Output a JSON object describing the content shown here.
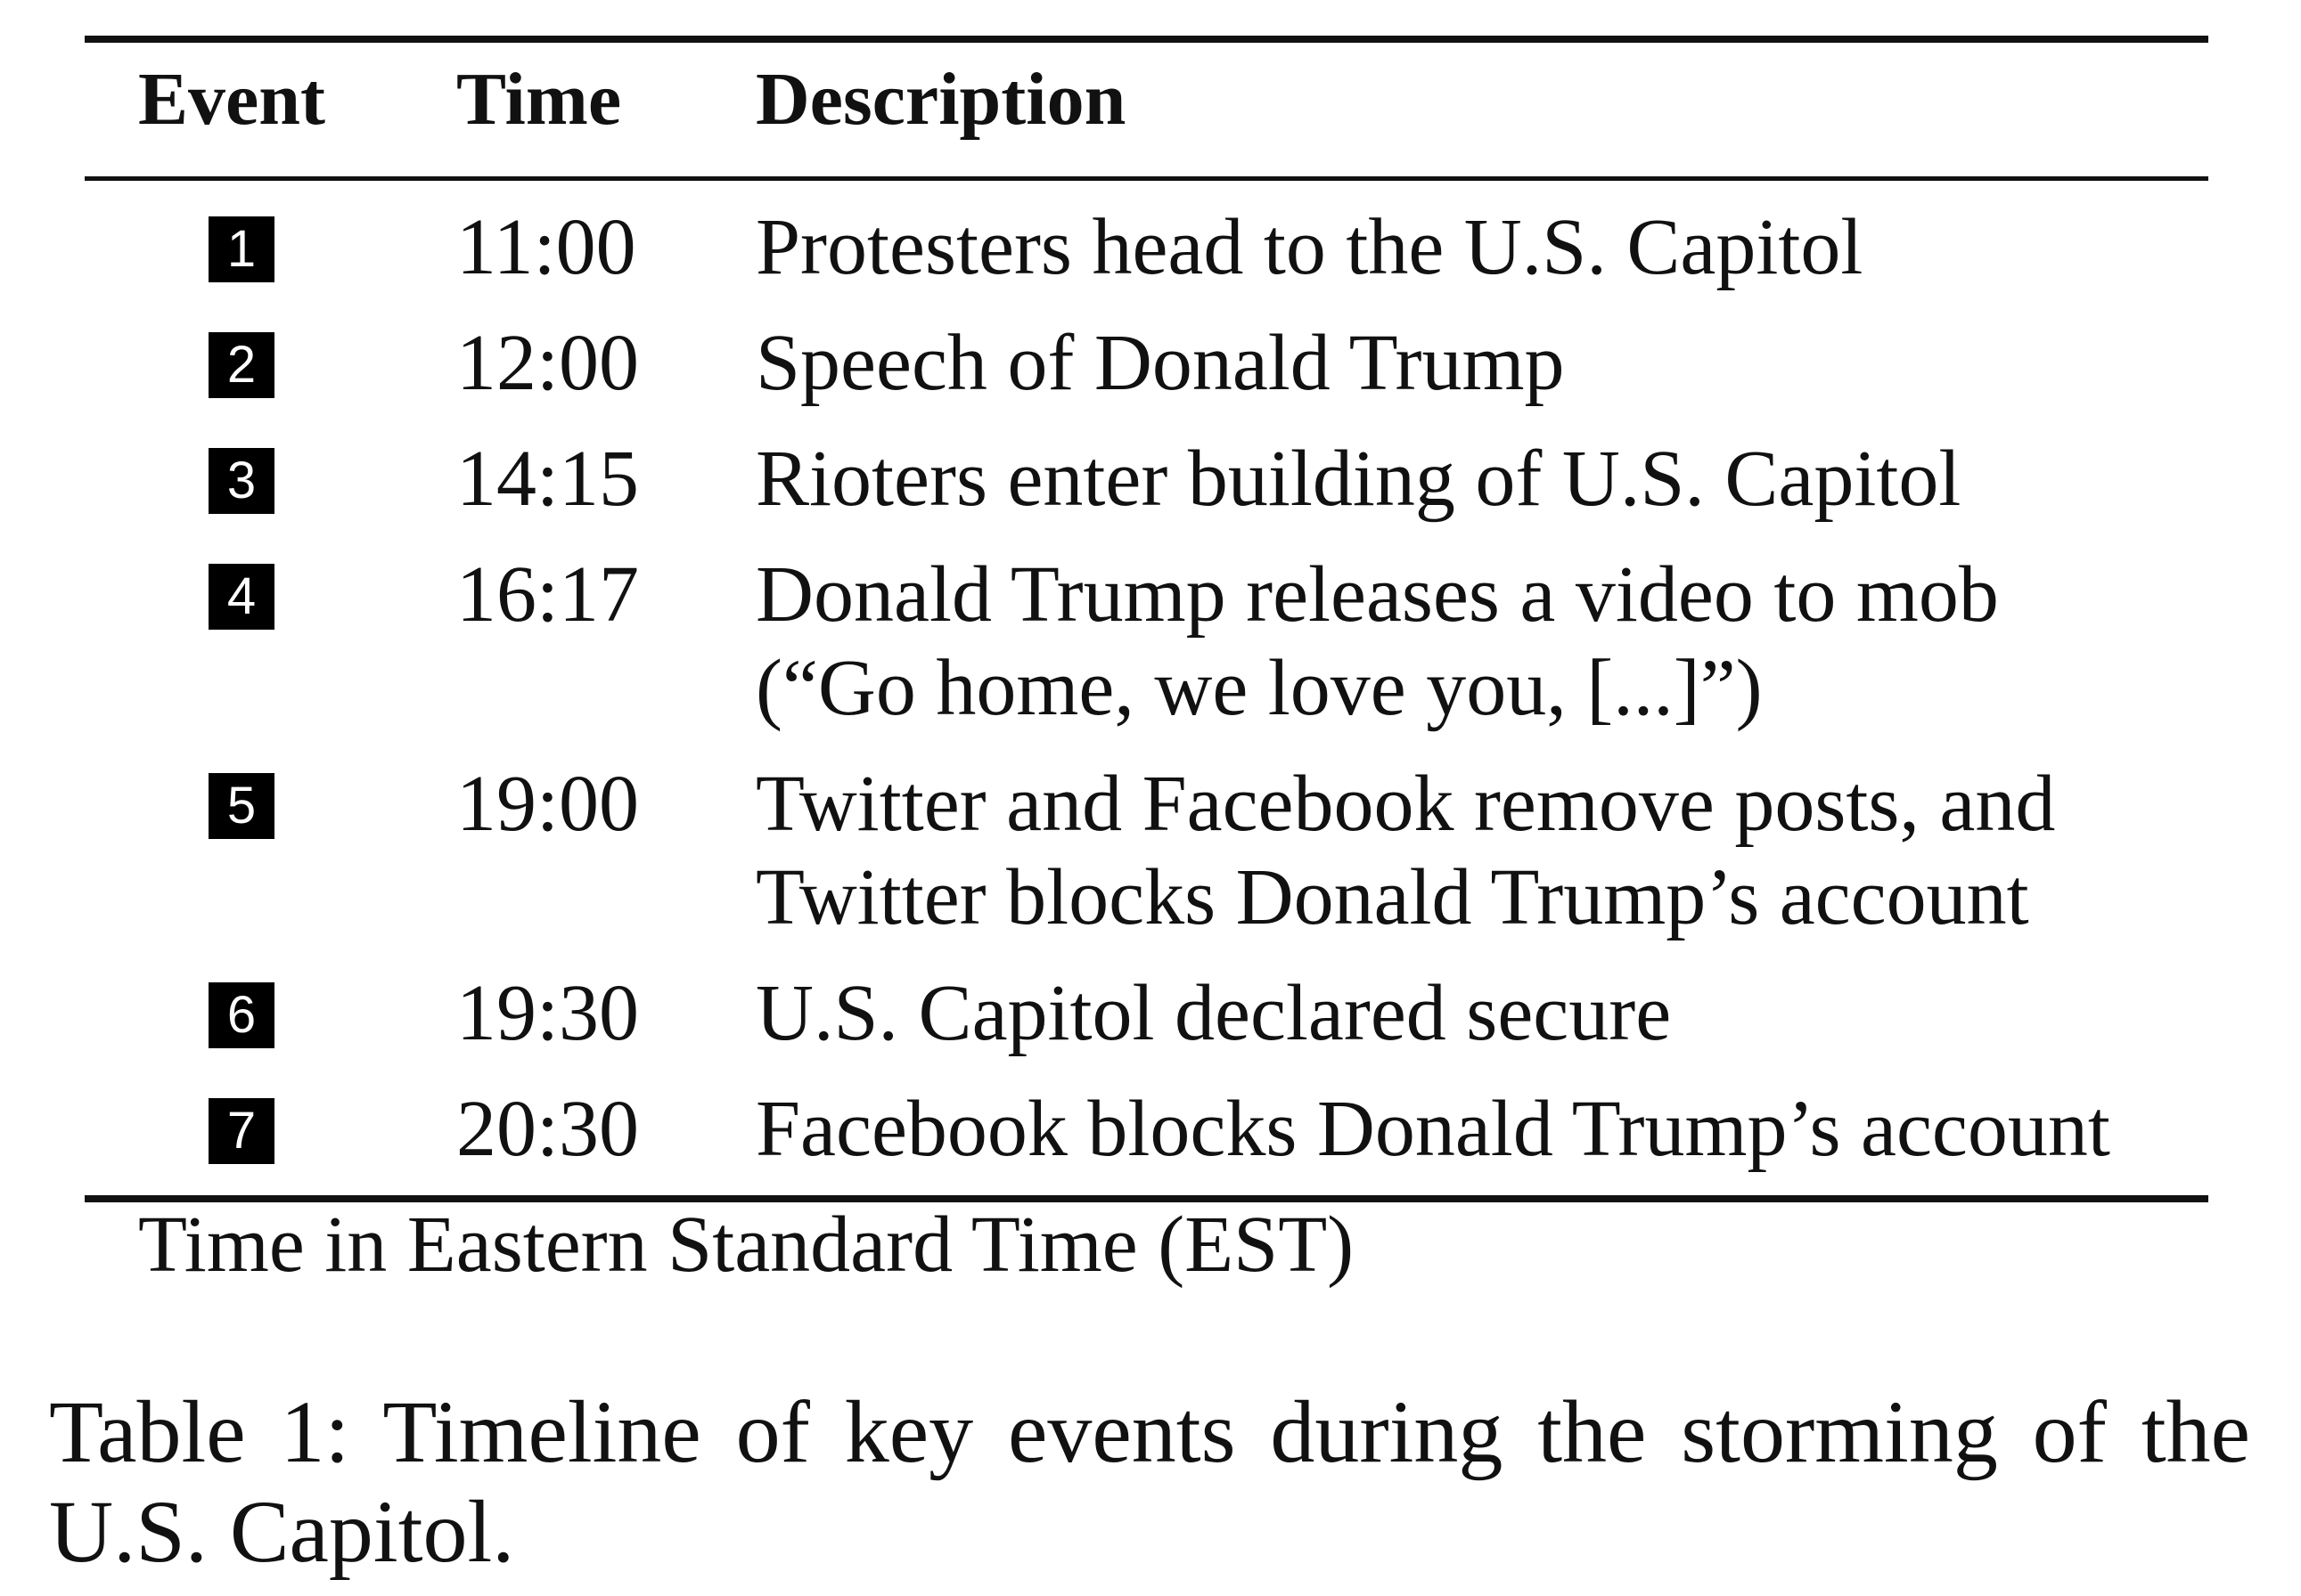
{
  "table": {
    "headers": {
      "event": "Event",
      "time": "Time",
      "description": "Description"
    },
    "rows": [
      {
        "event": "1",
        "time": "11:00",
        "description": [
          "Protesters head to the U.S. Capitol"
        ]
      },
      {
        "event": "2",
        "time": "12:00",
        "description": [
          "Speech of Donald Trump"
        ]
      },
      {
        "event": "3",
        "time": "14:15",
        "description": [
          "Rioters enter building of U.S. Capitol"
        ]
      },
      {
        "event": "4",
        "time": "16:17",
        "description": [
          "Donald Trump releases a video to mob",
          "(“Go home, we love you, [...]”)"
        ]
      },
      {
        "event": "5",
        "time": "19:00",
        "description": [
          "Twitter and Facebook remove posts, and",
          "Twitter blocks Donald Trump’s account"
        ]
      },
      {
        "event": "6",
        "time": "19:30",
        "description": [
          "U.S. Capitol declared secure"
        ]
      },
      {
        "event": "7",
        "time": "20:30",
        "description": [
          "Facebook blocks Donald Trump’s account"
        ]
      }
    ],
    "note": "Time in Eastern Standard Time (EST)"
  },
  "caption": {
    "line1": "Table 1: Timeline of key events during the storming of the",
    "line2": "U.S. Capitol."
  }
}
